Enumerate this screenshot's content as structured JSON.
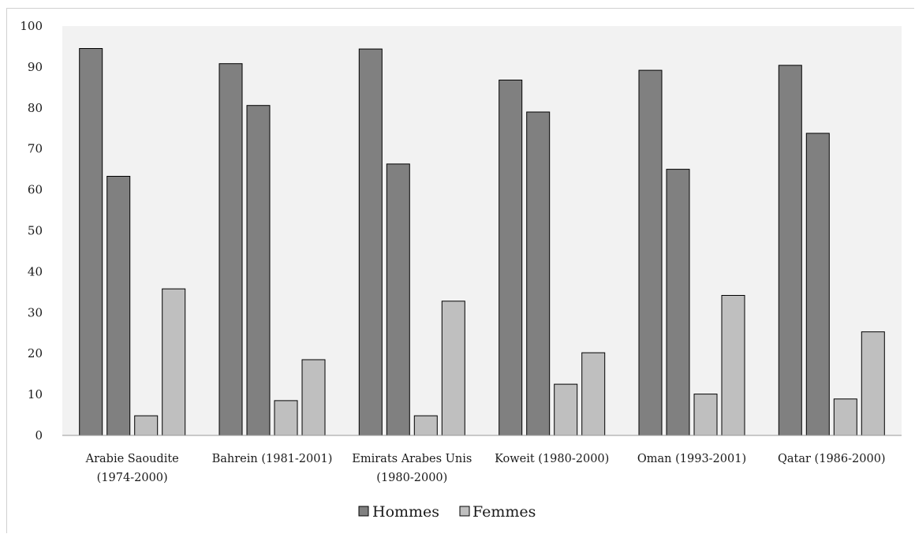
{
  "chart_data": {
    "type": "bar",
    "categories": [
      [
        "Arabie Saoudite",
        "(1974-2000)"
      ],
      [
        "Bahrein (1981-2001)"
      ],
      [
        "Emirats Arabes Unis",
        "(1980-2000)"
      ],
      [
        "Koweit (1980-2000)"
      ],
      [
        "Oman (1993-2001)"
      ],
      [
        "Qatar (1986-2000)"
      ]
    ],
    "series": [
      {
        "name": "Hommes",
        "color": "#808080",
        "values": [
          [
            94.5,
            63.3
          ],
          [
            90.8,
            80.6
          ],
          [
            94.4,
            66.3
          ],
          [
            86.8,
            79.0
          ],
          [
            89.2,
            65.0
          ],
          [
            90.4,
            73.8
          ]
        ]
      },
      {
        "name": "Femmes",
        "color": "#bfbfbf",
        "values": [
          [
            4.8,
            35.8
          ],
          [
            8.5,
            18.5
          ],
          [
            4.8,
            32.8
          ],
          [
            12.5,
            20.2
          ],
          [
            10.1,
            34.2
          ],
          [
            8.9,
            25.3
          ]
        ]
      }
    ],
    "ylim": [
      0,
      100
    ],
    "yticks": [
      0,
      10,
      20,
      30,
      40,
      50,
      60,
      70,
      80,
      90,
      100
    ],
    "grid": false,
    "plot_background": "#f2f2f2",
    "legend": "bottom-center",
    "title": "",
    "xlabel": "",
    "ylabel": ""
  }
}
